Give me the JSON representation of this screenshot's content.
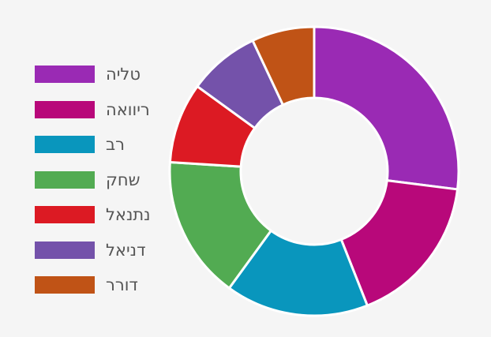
{
  "chart_data": {
    "type": "pie",
    "style": "donut",
    "legend_position": "left",
    "categories": [
      "טליה",
      "ריוואה",
      "רב",
      "שחק",
      "נתנאל",
      "דניאל",
      "דורר"
    ],
    "values": [
      27,
      17,
      16,
      16,
      9,
      8,
      7
    ],
    "colors": [
      "#9a2ab4",
      "#b8087a",
      "#0996bd",
      "#52ab52",
      "#dc1a23",
      "#7452aa",
      "#c05316"
    ]
  }
}
